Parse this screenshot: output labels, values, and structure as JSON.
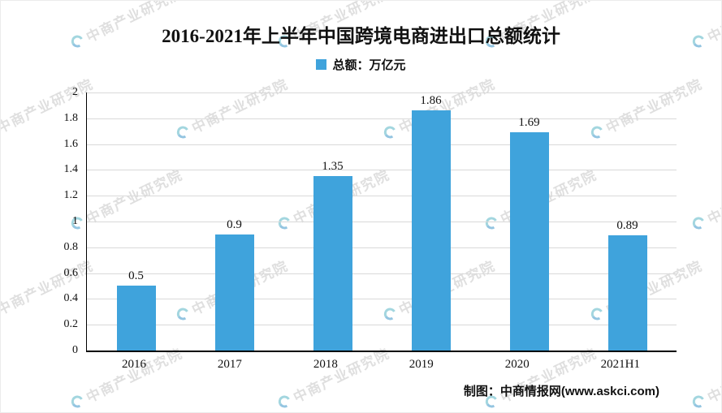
{
  "chart_data": {
    "type": "bar",
    "title": "2016-2021年上半年中国跨境电商进出口总额统计",
    "legend": "总额：万亿元",
    "legend_position": "top",
    "categories": [
      "2016",
      "2017",
      "2018",
      "2019",
      "2020",
      "2021H1"
    ],
    "values": [
      0.5,
      0.9,
      1.35,
      1.86,
      1.69,
      0.89
    ],
    "value_labels": [
      "0.5",
      "0.9",
      "1.35",
      "1.86",
      "1.69",
      "0.89"
    ],
    "xlabel": "",
    "ylabel": "",
    "ylim": [
      0,
      2
    ],
    "y_ticks": [
      "0",
      "0.2",
      "0.4",
      "0.6",
      "0.8",
      "1",
      "1.2",
      "1.4",
      "1.6",
      "1.8",
      "2"
    ],
    "grid": "horizontal",
    "bar_color": "#3fa3dc"
  },
  "footer": {
    "text": "制图：中商情报网(www.askci.com)"
  },
  "watermark": {
    "text": "中商产业研究院"
  }
}
